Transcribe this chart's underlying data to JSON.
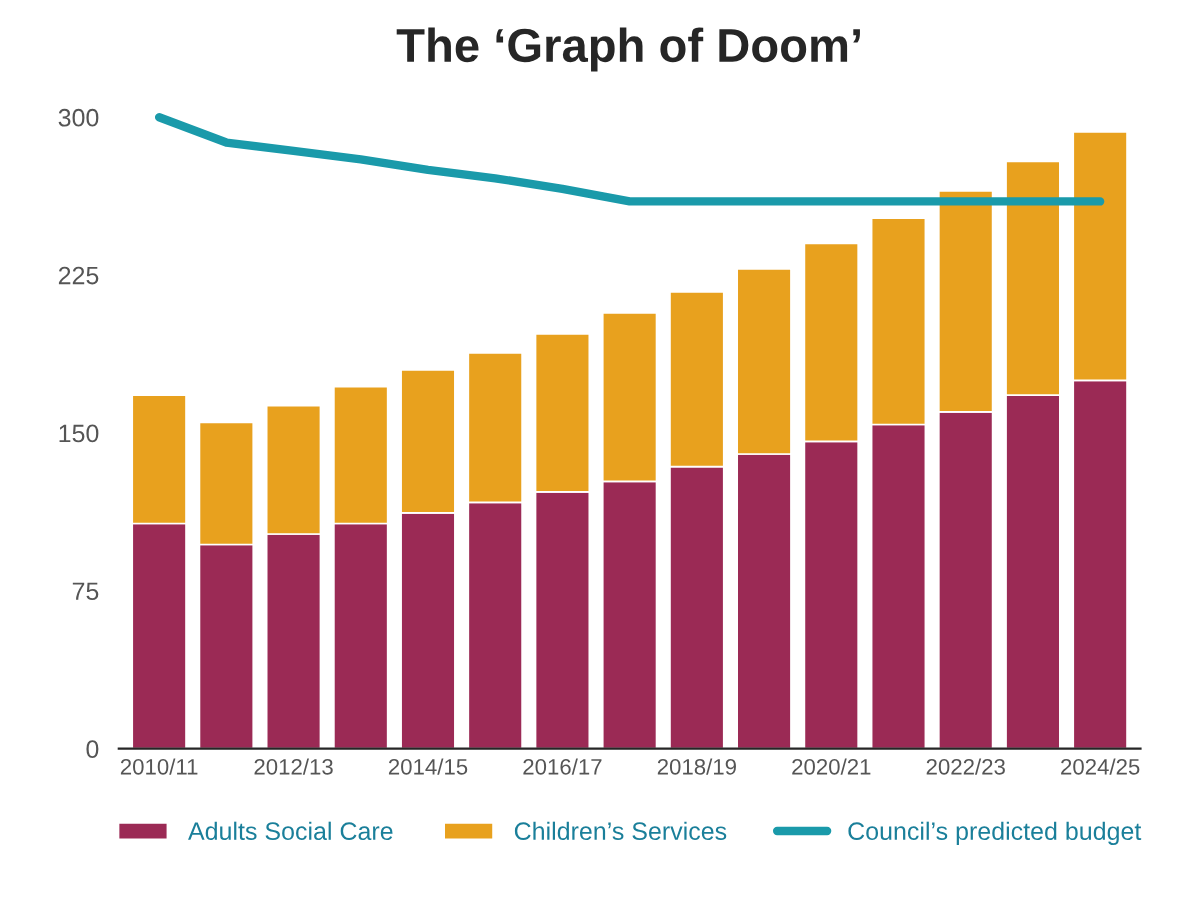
{
  "chart_data": {
    "type": "bar",
    "title": "The ‘Graph of Doom’",
    "stacked": true,
    "categories": [
      "2010/11",
      null,
      "2012/13",
      null,
      "2014/15",
      null,
      "2016/17",
      null,
      "2018/19",
      null,
      "2020/21",
      null,
      "2022/23",
      null,
      "2024/25"
    ],
    "series": [
      {
        "name": "Adults Social Care",
        "color": "#9b2a55",
        "values": [
          107,
          97,
          102,
          107,
          112,
          117,
          122,
          127,
          134,
          140,
          146,
          154,
          160,
          168,
          175
        ]
      },
      {
        "name": "Children’s Services",
        "color": "#e8a11e",
        "values": [
          61,
          58,
          61,
          65,
          68,
          71,
          75,
          80,
          83,
          88,
          94,
          98,
          105,
          111,
          118
        ]
      },
      {
        "name": "Council’s predicted budget",
        "type": "line",
        "color": "#1a9aaa",
        "values": [
          300,
          288,
          284,
          280,
          275,
          271,
          266,
          260,
          260,
          260,
          260,
          260,
          260,
          260,
          260
        ]
      }
    ],
    "ylim": [
      0,
      300
    ],
    "yticks": [
      0,
      75,
      150,
      225,
      300
    ],
    "grid": false,
    "legend": "bottom"
  }
}
